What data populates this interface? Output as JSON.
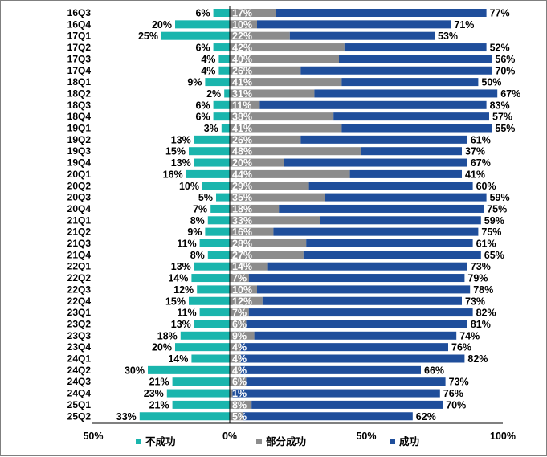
{
  "chart_data": {
    "type": "bar",
    "orientation": "horizontal",
    "stacked": "diverging",
    "categories": [
      "16Q3",
      "16Q4",
      "17Q1",
      "17Q2",
      "17Q3",
      "17Q4",
      "18Q1",
      "18Q2",
      "18Q3",
      "18Q4",
      "19Q1",
      "19Q2",
      "19Q3",
      "19Q4",
      "20Q1",
      "20Q2",
      "20Q3",
      "20Q4",
      "21Q1",
      "21Q2",
      "21Q3",
      "21Q4",
      "22Q1",
      "22Q2",
      "22Q3",
      "22Q4",
      "23Q1",
      "23Q2",
      "23Q3",
      "23Q4",
      "24Q1",
      "24Q2",
      "24Q3",
      "24Q4",
      "25Q1",
      "25Q2"
    ],
    "series": [
      {
        "name": "不成功",
        "color": "#1ab5ad",
        "values": [
          6,
          20,
          25,
          6,
          4,
          4,
          9,
          2,
          6,
          6,
          3,
          13,
          15,
          13,
          16,
          10,
          5,
          7,
          8,
          9,
          11,
          8,
          13,
          14,
          12,
          15,
          11,
          13,
          18,
          20,
          14,
          30,
          21,
          23,
          21,
          33
        ]
      },
      {
        "name": "部分成功",
        "color": "#8c8c8c",
        "values": [
          17,
          10,
          22,
          42,
          40,
          26,
          41,
          31,
          11,
          38,
          41,
          26,
          48,
          20,
          44,
          29,
          35,
          18,
          33,
          16,
          28,
          27,
          14,
          7,
          10,
          12,
          7,
          6,
          9,
          4,
          4,
          4,
          6,
          1,
          8,
          5
        ]
      },
      {
        "name": "成功",
        "color": "#1f4e9b",
        "values": [
          77,
          71,
          53,
          52,
          56,
          70,
          50,
          67,
          83,
          57,
          55,
          61,
          37,
          67,
          41,
          60,
          59,
          75,
          59,
          75,
          61,
          65,
          73,
          79,
          78,
          73,
          82,
          81,
          74,
          76,
          82,
          66,
          73,
          76,
          70,
          62
        ]
      }
    ],
    "x_ticks": [
      "50%",
      "0%",
      "50%",
      "100%"
    ],
    "xlim": [
      -50,
      100
    ],
    "legend_position": "bottom",
    "grid": false
  }
}
